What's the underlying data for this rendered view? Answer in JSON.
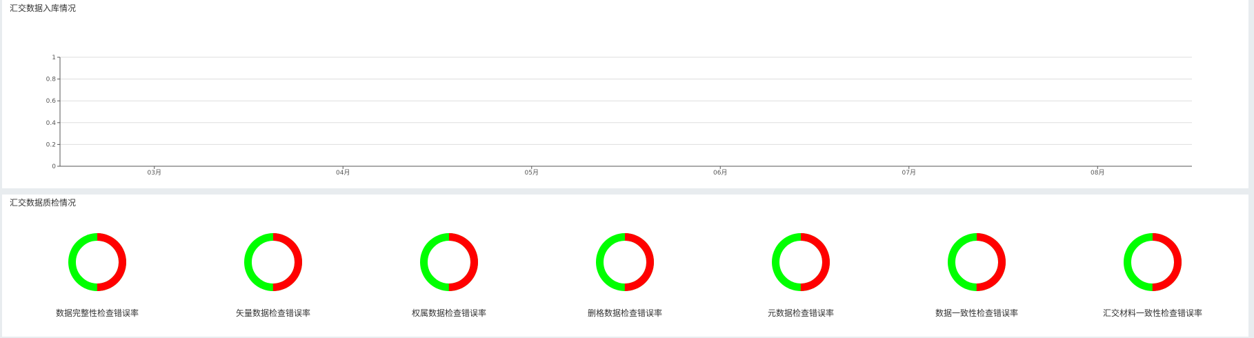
{
  "panels": {
    "top_title": "汇交数据入库情况",
    "bottom_title": "汇交数据质检情况"
  },
  "colors": {
    "pass": "#00ff00",
    "error": "#ff0000",
    "grid": "#dddddd",
    "axis": "#555555"
  },
  "chart_data": [
    {
      "type": "line",
      "title": "汇交数据入库情况",
      "categories": [
        "03月",
        "04月",
        "05月",
        "06月",
        "07月",
        "08月"
      ],
      "series": [],
      "y_ticks": [
        "0",
        "0.2",
        "0.4",
        "0.6",
        "0.8",
        "1"
      ],
      "ylim": [
        0,
        1
      ],
      "grid": true
    },
    {
      "type": "pie",
      "title": "汇交数据质检情况",
      "items": [
        {
          "label": "数据完整性检查错误率",
          "values": [
            50,
            50
          ]
        },
        {
          "label": "矢量数据检查错误率",
          "values": [
            50,
            50
          ]
        },
        {
          "label": "权属数据检查错误率",
          "values": [
            50,
            50
          ]
        },
        {
          "label": "删格数据检查错误率",
          "values": [
            50,
            50
          ]
        },
        {
          "label": "元数据检查错误率",
          "values": [
            50,
            50
          ]
        },
        {
          "label": "数据一致性检查错误率",
          "values": [
            50,
            50
          ]
        },
        {
          "label": "汇交材料一致性检查错误率",
          "values": [
            50,
            50
          ]
        }
      ]
    }
  ]
}
